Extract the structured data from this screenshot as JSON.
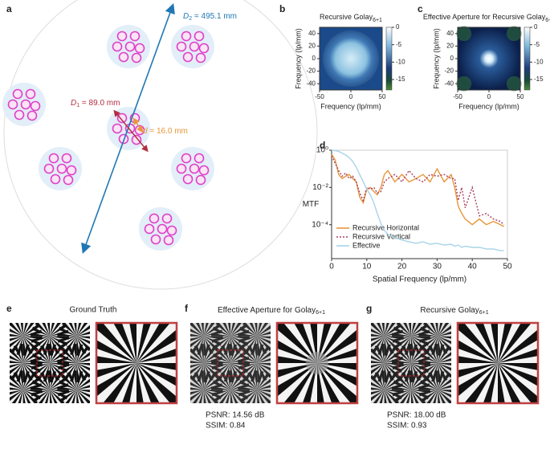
{
  "panel_labels": [
    "a",
    "b",
    "c",
    "d",
    "e",
    "f",
    "g"
  ],
  "diagram": {
    "d2": {
      "symbol": "D",
      "sub": "2",
      "value": " = 495.1 mm"
    },
    "d1": {
      "symbol": "D",
      "sub": "1",
      "value": " = 89.0 mm"
    },
    "d": {
      "symbol": "d",
      "value": " = 16.0 mm"
    }
  },
  "chart_data": [
    {
      "type": "heatmap",
      "title": "Recursive Golay",
      "title_sub": "6+1",
      "xlabel": "Frequency (lp/mm)",
      "ylabel": "Frequency (lp/mm)",
      "xlim": [
        -50,
        50
      ],
      "ylim": [
        -50,
        50
      ],
      "xticks": [
        -50,
        0,
        50
      ],
      "yticks": [
        -40,
        -20,
        0,
        20,
        40
      ],
      "clim": [
        -18,
        0
      ],
      "cticks": [
        0,
        -5,
        -10,
        -15
      ]
    },
    {
      "type": "heatmap",
      "title": "Effective Aperture for Recursive Golay",
      "title_sub": "6+1",
      "xlabel": "Frequency (lp/mm)",
      "ylabel": "Frequency (lp/mm)",
      "xlim": [
        -50,
        50
      ],
      "ylim": [
        -50,
        50
      ],
      "xticks": [
        -50,
        0,
        50
      ],
      "yticks": [
        -40,
        -20,
        0,
        20,
        40
      ],
      "clim": [
        -18,
        0
      ],
      "cticks": [
        0,
        -5,
        -10,
        -15
      ]
    },
    {
      "type": "line",
      "xlabel": "Spatial Frequency (lp/mm)",
      "ylabel": "MTF",
      "log_y": true,
      "xlim": [
        0,
        50
      ],
      "ylim": [
        1.5e-06,
        1
      ],
      "xticks": [
        0,
        10,
        20,
        30,
        40,
        50
      ],
      "yticks": [
        {
          "value": 1,
          "label": "10⁰"
        },
        {
          "value": 0.01,
          "label": "10⁻²"
        },
        {
          "value": 0.0001,
          "label": "10⁻⁴"
        }
      ],
      "legend": "lower left",
      "x": [
        0,
        1,
        2,
        3,
        4,
        5,
        6,
        7,
        8,
        9,
        10,
        11,
        12,
        13,
        14,
        15,
        16,
        18,
        20,
        22,
        24,
        26,
        28,
        30,
        32,
        34,
        35,
        36,
        37,
        38,
        40,
        42,
        44,
        46,
        48,
        49
      ],
      "series": [
        {
          "name": "Recursive Horizontal",
          "color": "#e8963a",
          "dash": "solid",
          "values": [
            0.6,
            0.3,
            0.05,
            0.03,
            0.04,
            0.05,
            0.03,
            0.02,
            0.003,
            0.0015,
            0.008,
            0.01,
            0.006,
            0.004,
            0.01,
            0.05,
            0.08,
            0.02,
            0.05,
            0.02,
            0.03,
            0.05,
            0.02,
            0.1,
            0.02,
            0.05,
            0.01,
            0.001,
            0.0004,
            0.0002,
            0.0001,
            0.0002,
            0.0001,
            0.00015,
            0.0001,
            8e-05
          ]
        },
        {
          "name": "Recursive Vertical",
          "color": "#a8405c",
          "dash": "dotted",
          "values": [
            0.5,
            0.2,
            0.08,
            0.04,
            0.06,
            0.03,
            0.04,
            0.02,
            0.005,
            0.002,
            0.01,
            0.008,
            0.01,
            0.005,
            0.006,
            0.02,
            0.03,
            0.05,
            0.02,
            0.08,
            0.03,
            0.02,
            0.05,
            0.04,
            0.05,
            0.03,
            0.03,
            0.002,
            0.01,
            0.0008,
            0.01,
            0.0003,
            0.0004,
            0.0002,
            0.00015,
            0.0001
          ]
        },
        {
          "name": "Effective",
          "color": "#a8d4e8",
          "dash": "solid",
          "values": [
            1,
            0.95,
            0.85,
            0.7,
            0.55,
            0.4,
            0.25,
            0.12,
            0.05,
            0.02,
            0.008,
            0.004,
            0.0015,
            0.0004,
            0.00012,
            5e-05,
            3e-05,
            2e-05,
            1.5e-05,
            1.2e-05,
            1e-05,
            1.2e-05,
            9e-06,
            1e-05,
            8e-06,
            9e-06,
            7e-06,
            8e-06,
            6e-06,
            7e-06,
            6e-06,
            6e-06,
            5e-06,
            5e-06,
            4e-06,
            4e-06
          ]
        }
      ]
    }
  ],
  "reconstructions": [
    {
      "title": "Ground Truth"
    },
    {
      "title": "Effective Aperture for Golay",
      "title_sub": "6+1",
      "psnr": "PSNR: 14.56 dB",
      "ssim": "SSIM: 0.84"
    },
    {
      "title": "Recursive Golay",
      "title_sub": "6+1",
      "psnr": "PSNR: 18.00 dB",
      "ssim": "SSIM: 0.93"
    }
  ]
}
